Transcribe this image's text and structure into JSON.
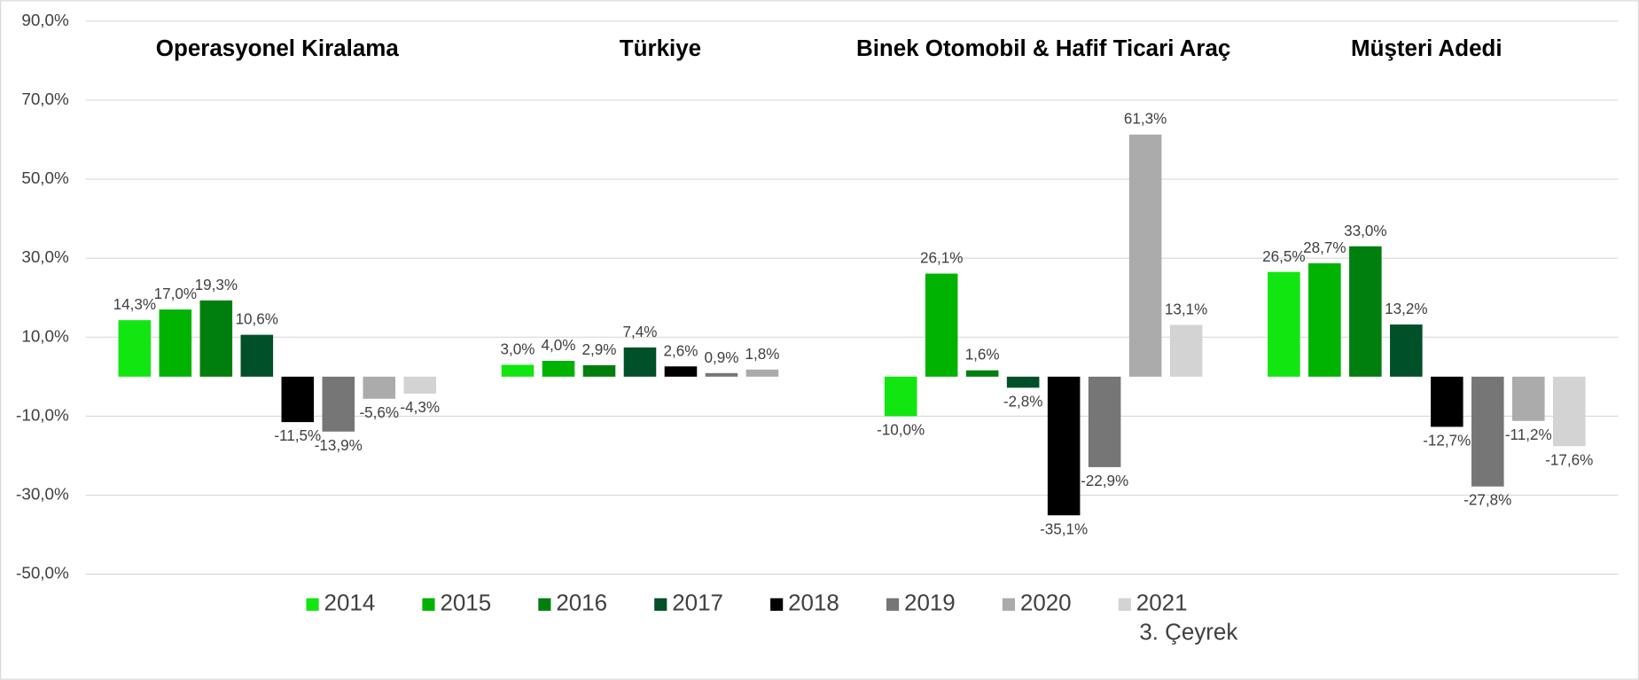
{
  "chart_data": {
    "type": "bar",
    "categories": [
      "Operasyonel Kiralama",
      "Türkiye",
      "Binek Otomobil & Hafif Ticari Araç",
      "Müşteri Adedi"
    ],
    "series": [
      {
        "name": "2014",
        "color": "#11e611",
        "values": [
          14.3,
          3.0,
          -10.0,
          26.5
        ],
        "value_labels": [
          "14,3%",
          "3,0%",
          "-10,0%",
          "26,5%"
        ]
      },
      {
        "name": "2015",
        "color": "#00b300",
        "values": [
          17.0,
          4.0,
          26.1,
          28.7
        ],
        "value_labels": [
          "17,0%",
          "4,0%",
          "26,1%",
          "28,7%"
        ]
      },
      {
        "name": "2016",
        "color": "#007f0e",
        "values": [
          19.3,
          2.9,
          1.6,
          33.0
        ],
        "value_labels": [
          "19,3%",
          "2,9%",
          "1,6%",
          "33,0%"
        ]
      },
      {
        "name": "2017",
        "color": "#00502a",
        "values": [
          10.6,
          7.4,
          -2.8,
          13.2
        ],
        "value_labels": [
          "10,6%",
          "7,4%",
          "-2,8%",
          "13,2%"
        ]
      },
      {
        "name": "2018",
        "color": "#000000",
        "values": [
          -11.5,
          2.6,
          -35.1,
          -12.7
        ],
        "value_labels": [
          "-11,5%",
          "2,6%",
          "-35,1%",
          "-12,7%"
        ]
      },
      {
        "name": "2019",
        "color": "#767676",
        "values": [
          -13.9,
          0.9,
          -22.9,
          -27.8
        ],
        "value_labels": [
          "-13,9%",
          "0,9%",
          "-22,9%",
          "-27,8%"
        ]
      },
      {
        "name": "2020",
        "color": "#ababab",
        "values": [
          -5.6,
          1.8,
          61.3,
          -11.2
        ],
        "value_labels": [
          "-5,6%",
          "1,8%",
          "61,3%",
          "-11,2%"
        ]
      },
      {
        "name": "2021",
        "color": "#d3d3d3",
        "values": [
          -4.3,
          null,
          13.1,
          -17.6
        ],
        "value_labels": [
          "-4,3%",
          null,
          "13,1%",
          "-17,6%"
        ]
      }
    ],
    "ylim": [
      -50,
      90
    ],
    "yticks": [
      {
        "value": 90,
        "label": "90,0%"
      },
      {
        "value": 70,
        "label": "70,0%"
      },
      {
        "value": 50,
        "label": "50,0%"
      },
      {
        "value": 30,
        "label": "30,0%"
      },
      {
        "value": 10,
        "label": "10,0%"
      },
      {
        "value": -10,
        "label": "-10,0%"
      },
      {
        "value": -30,
        "label": "-30,0%"
      },
      {
        "value": -50,
        "label": "-50,0%"
      }
    ],
    "grid": true,
    "legend": "bottom",
    "annotation": "3. Çeyrek"
  }
}
